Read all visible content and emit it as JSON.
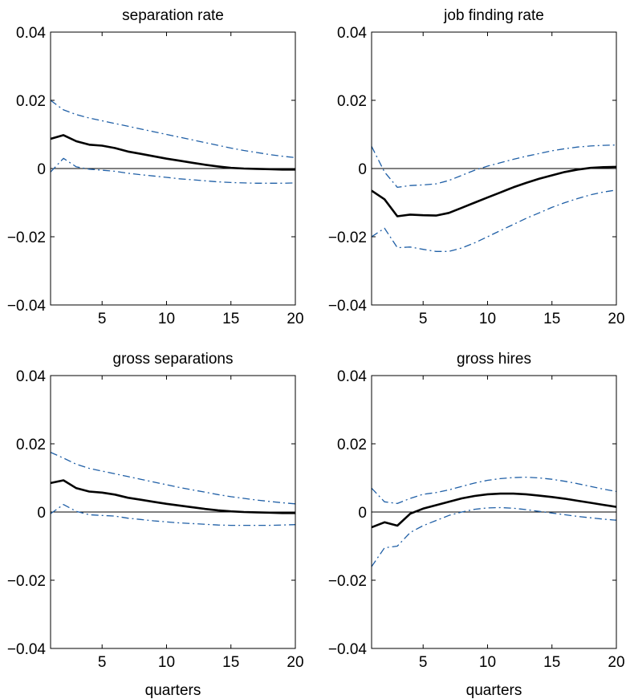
{
  "figure": {
    "colors": {
      "point_estimate": "#000000",
      "confidence_band": "#1f5fa6",
      "axes": "#000000"
    }
  },
  "chart_data": [
    {
      "type": "line",
      "title": "separation rate",
      "xlabel": "",
      "ylabel": "",
      "xlim": [
        1,
        20
      ],
      "ylim": [
        -0.04,
        0.04
      ],
      "xticks": [
        5,
        10,
        15,
        20
      ],
      "yticks": [
        -0.04,
        -0.02,
        0,
        0.02,
        0.04
      ],
      "ytick_labels": [
        "−0.04",
        "−0.02",
        "0",
        "0.02",
        "0.04"
      ],
      "xtick_labels": [
        "5",
        "10",
        "15",
        "20"
      ],
      "grid": false,
      "zero_line": true,
      "x": [
        1,
        2,
        3,
        4,
        5,
        6,
        7,
        8,
        9,
        10,
        11,
        12,
        13,
        14,
        15,
        16,
        17,
        18,
        19,
        20
      ],
      "series": [
        {
          "style": "solid",
          "values": [
            0.0087,
            0.0098,
            0.008,
            0.007,
            0.0067,
            0.006,
            0.005,
            0.0043,
            0.0036,
            0.0029,
            0.0023,
            0.0017,
            0.0011,
            0.0006,
            0.0002,
            0.0,
            -0.0001,
            -0.0002,
            -0.0003,
            -0.0003
          ]
        },
        {
          "style": "dashdot",
          "values": [
            0.02,
            0.0172,
            0.0158,
            0.0148,
            0.014,
            0.0132,
            0.0124,
            0.0116,
            0.0108,
            0.01,
            0.0092,
            0.0084,
            0.0076,
            0.0068,
            0.006,
            0.0053,
            0.0047,
            0.0041,
            0.0036,
            0.0032
          ]
        },
        {
          "style": "dashdot",
          "values": [
            -0.001,
            0.003,
            0.0005,
            -0.0002,
            -0.0005,
            -0.0008,
            -0.0014,
            -0.0018,
            -0.0022,
            -0.0026,
            -0.003,
            -0.0033,
            -0.0036,
            -0.0039,
            -0.0041,
            -0.0042,
            -0.0043,
            -0.0043,
            -0.0043,
            -0.0042
          ]
        }
      ]
    },
    {
      "type": "line",
      "title": "job finding rate",
      "xlabel": "",
      "ylabel": "",
      "xlim": [
        1,
        20
      ],
      "ylim": [
        -0.04,
        0.04
      ],
      "xticks": [
        5,
        10,
        15,
        20
      ],
      "yticks": [
        -0.04,
        -0.02,
        0,
        0.02,
        0.04
      ],
      "ytick_labels": [
        "−0.04",
        "−0.02",
        "0",
        "0.02",
        "0.04"
      ],
      "xtick_labels": [
        "5",
        "10",
        "15",
        "20"
      ],
      "grid": false,
      "zero_line": true,
      "x": [
        1,
        2,
        3,
        4,
        5,
        6,
        7,
        8,
        9,
        10,
        11,
        12,
        13,
        14,
        15,
        16,
        17,
        18,
        19,
        20
      ],
      "series": [
        {
          "style": "solid",
          "values": [
            -0.0065,
            -0.009,
            -0.014,
            -0.0135,
            -0.0137,
            -0.0138,
            -0.013,
            -0.0115,
            -0.01,
            -0.0085,
            -0.007,
            -0.0055,
            -0.0042,
            -0.003,
            -0.002,
            -0.001,
            -0.0003,
            0.0002,
            0.0004,
            0.0005
          ]
        },
        {
          "style": "dashdot",
          "values": [
            0.0065,
            -0.001,
            -0.0055,
            -0.005,
            -0.0048,
            -0.0045,
            -0.0035,
            -0.002,
            -0.0005,
            0.0007,
            0.0017,
            0.0027,
            0.0036,
            0.0044,
            0.0052,
            0.0058,
            0.0063,
            0.0066,
            0.0068,
            0.0069
          ]
        },
        {
          "style": "dashdot",
          "values": [
            -0.02,
            -0.0175,
            -0.0232,
            -0.023,
            -0.0237,
            -0.0243,
            -0.0243,
            -0.0233,
            -0.0218,
            -0.02,
            -0.0182,
            -0.0164,
            -0.0146,
            -0.013,
            -0.0114,
            -0.01,
            -0.0088,
            -0.0077,
            -0.0069,
            -0.0063
          ]
        }
      ]
    },
    {
      "type": "line",
      "title": "gross separations",
      "xlabel": "quarters",
      "ylabel": "",
      "xlim": [
        1,
        20
      ],
      "ylim": [
        -0.04,
        0.04
      ],
      "xticks": [
        5,
        10,
        15,
        20
      ],
      "yticks": [
        -0.04,
        -0.02,
        0,
        0.02,
        0.04
      ],
      "ytick_labels": [
        "−0.04",
        "−0.02",
        "0",
        "0.02",
        "0.04"
      ],
      "xtick_labels": [
        "5",
        "10",
        "15",
        "20"
      ],
      "grid": false,
      "zero_line": true,
      "x": [
        1,
        2,
        3,
        4,
        5,
        6,
        7,
        8,
        9,
        10,
        11,
        12,
        13,
        14,
        15,
        16,
        17,
        18,
        19,
        20
      ],
      "series": [
        {
          "style": "solid",
          "values": [
            0.0085,
            0.0093,
            0.007,
            0.006,
            0.0057,
            0.0051,
            0.0042,
            0.0036,
            0.003,
            0.0024,
            0.0019,
            0.0014,
            0.0009,
            0.0005,
            0.0002,
            0.0,
            -0.0001,
            -0.0002,
            -0.0003,
            -0.0003
          ]
        },
        {
          "style": "dashdot",
          "values": [
            0.0175,
            0.0158,
            0.014,
            0.0128,
            0.012,
            0.0112,
            0.0104,
            0.0096,
            0.0088,
            0.008,
            0.0072,
            0.0065,
            0.0058,
            0.0051,
            0.0045,
            0.004,
            0.0035,
            0.0031,
            0.0027,
            0.0024
          ]
        },
        {
          "style": "dashdot",
          "values": [
            -0.0005,
            0.0022,
            0.0002,
            -0.0008,
            -0.001,
            -0.0012,
            -0.0018,
            -0.0022,
            -0.0026,
            -0.0029,
            -0.0032,
            -0.0034,
            -0.0036,
            -0.0038,
            -0.0039,
            -0.0039,
            -0.0039,
            -0.0039,
            -0.0038,
            -0.0037
          ]
        }
      ]
    },
    {
      "type": "line",
      "title": "gross hires",
      "xlabel": "quarters",
      "ylabel": "",
      "xlim": [
        1,
        20
      ],
      "ylim": [
        -0.04,
        0.04
      ],
      "xticks": [
        5,
        10,
        15,
        20
      ],
      "yticks": [
        -0.04,
        -0.02,
        0,
        0.02,
        0.04
      ],
      "ytick_labels": [
        "−0.04",
        "−0.02",
        "0",
        "0.02",
        "0.04"
      ],
      "xtick_labels": [
        "5",
        "10",
        "15",
        "20"
      ],
      "grid": false,
      "zero_line": true,
      "x": [
        1,
        2,
        3,
        4,
        5,
        6,
        7,
        8,
        9,
        10,
        11,
        12,
        13,
        14,
        15,
        16,
        17,
        18,
        19,
        20
      ],
      "series": [
        {
          "style": "solid",
          "values": [
            -0.0045,
            -0.003,
            -0.004,
            -0.0005,
            0.001,
            0.002,
            0.003,
            0.004,
            0.0047,
            0.0052,
            0.0054,
            0.0054,
            0.0052,
            0.0048,
            0.0044,
            0.0039,
            0.0033,
            0.0027,
            0.0021,
            0.0015
          ]
        },
        {
          "style": "dashdot",
          "values": [
            0.007,
            0.003,
            0.0025,
            0.004,
            0.0052,
            0.0057,
            0.0065,
            0.0075,
            0.0085,
            0.0093,
            0.0098,
            0.0101,
            0.0102,
            0.01,
            0.0096,
            0.009,
            0.0083,
            0.0075,
            0.0067,
            0.006
          ]
        },
        {
          "style": "dashdot",
          "values": [
            -0.016,
            -0.0105,
            -0.01,
            -0.006,
            -0.004,
            -0.0025,
            -0.001,
            0.0,
            0.0008,
            0.0012,
            0.0013,
            0.0011,
            0.0007,
            0.0002,
            -0.0003,
            -0.0008,
            -0.0013,
            -0.0017,
            -0.0021,
            -0.0024
          ]
        }
      ]
    }
  ]
}
